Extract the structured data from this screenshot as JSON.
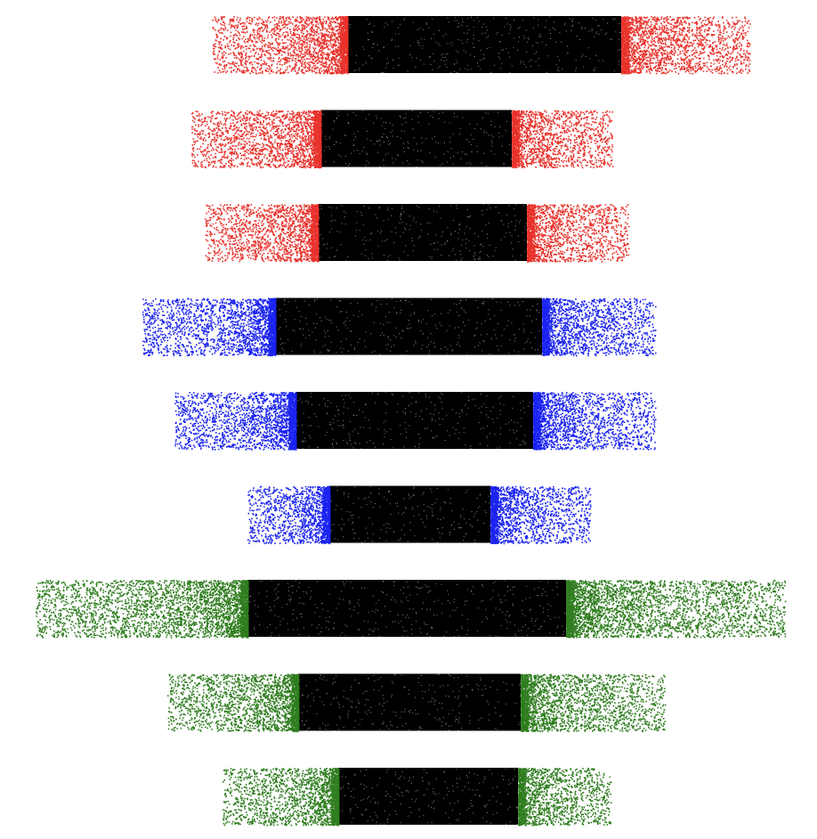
{
  "chart_data": {
    "type": "scatter",
    "title": "",
    "xlabel": "",
    "ylabel": "",
    "xlim": [
      0,
      918
    ],
    "ylim": [
      0,
      9
    ],
    "grid": false,
    "legend": "none",
    "axes_visible": false,
    "series_order": "top-to-bottom",
    "series": [
      {
        "color": "#e8322b",
        "core_color": "#000000",
        "core": [
          390,
          698
        ],
        "tails": [
          238,
          842
        ],
        "point_count": 24000
      },
      {
        "color": "#e8322b",
        "core_color": "#000000",
        "core": [
          360,
          575
        ],
        "tails": [
          215,
          688
        ],
        "point_count": 18000
      },
      {
        "color": "#e8322b",
        "core_color": "#000000",
        "core": [
          357,
          592
        ],
        "tails": [
          230,
          706
        ],
        "point_count": 18000
      },
      {
        "color": "#1a23f0",
        "core_color": "#000000",
        "core": [
          309,
          609
        ],
        "tails": [
          160,
          736
        ],
        "point_count": 22000
      },
      {
        "color": "#1a23f0",
        "core_color": "#000000",
        "core": [
          332,
          599
        ],
        "tails": [
          196,
          736
        ],
        "point_count": 20000
      },
      {
        "color": "#1a23f0",
        "core_color": "#000000",
        "core": [
          370,
          551
        ],
        "tails": [
          278,
          663
        ],
        "point_count": 15000
      },
      {
        "color": "#2f7d1f",
        "core_color": "#000000",
        "core": [
          278,
          636
        ],
        "tails": [
          40,
          882
        ],
        "point_count": 24000
      },
      {
        "color": "#2f7d1f",
        "core_color": "#000000",
        "core": [
          335,
          585
        ],
        "tails": [
          188,
          747
        ],
        "point_count": 20000
      },
      {
        "color": "#2f7d1f",
        "core_color": "#000000",
        "core": [
          380,
          582
        ],
        "tails": [
          250,
          686
        ],
        "point_count": 18000
      }
    ]
  }
}
